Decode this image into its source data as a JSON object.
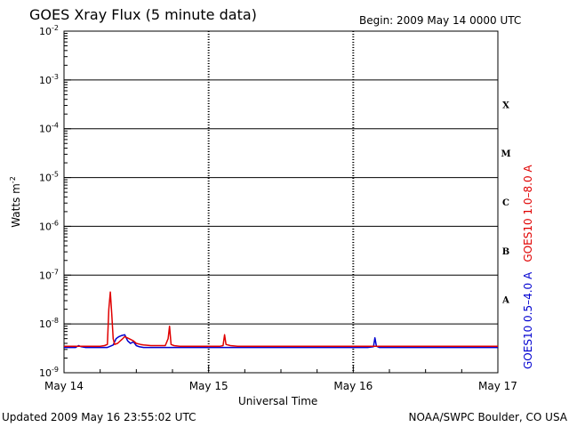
{
  "header": {
    "title": "GOES Xray Flux (5 minute data)",
    "begin": "Begin:  2009 May 14 0000 UTC"
  },
  "footer": {
    "updated": "Updated 2009 May 16 23:55:02 UTC",
    "credit": "NOAA/SWPC Boulder, CO USA"
  },
  "chart_data": {
    "type": "line",
    "title": "GOES Xray Flux (5 minute data)",
    "xlabel": "Universal Time",
    "ylabel": "Watts m",
    "ylabel_sup": "-2",
    "x_unit": "days since 2009 May 14 0000 UTC",
    "xlim": [
      0,
      3
    ],
    "ylim": [
      1e-09,
      0.01
    ],
    "yscale": "log",
    "grid": "horizontal lines at decades from 1e-8 to 1e-3; dashed vertical lines at day boundaries",
    "x_ticks": [
      {
        "value": 0,
        "label": "May 14"
      },
      {
        "value": 1,
        "label": "May 15"
      },
      {
        "value": 2,
        "label": "May 16"
      },
      {
        "value": 3,
        "label": "May 17"
      }
    ],
    "y_ticks": [
      {
        "exp": -9,
        "base": "10",
        "sup": "-9"
      },
      {
        "exp": -8,
        "base": "10",
        "sup": "-8"
      },
      {
        "exp": -7,
        "base": "10",
        "sup": "-7"
      },
      {
        "exp": -6,
        "base": "10",
        "sup": "-6"
      },
      {
        "exp": -5,
        "base": "10",
        "sup": "-5"
      },
      {
        "exp": -4,
        "base": "10",
        "sup": "-4"
      },
      {
        "exp": -3,
        "base": "10",
        "sup": "-3"
      },
      {
        "exp": -2,
        "base": "10",
        "sup": "-2"
      }
    ],
    "flare_classes": [
      {
        "label": "A",
        "exp": -8
      },
      {
        "label": "B",
        "exp": -7
      },
      {
        "label": "C",
        "exp": -6
      },
      {
        "label": "M",
        "exp": -5
      },
      {
        "label": "X",
        "exp": -4
      }
    ],
    "series": [
      {
        "name": "GOES10 1.0–8.0 A",
        "color": "#e00000",
        "x": [
          0,
          0.05,
          0.1,
          0.15,
          0.2,
          0.25,
          0.28,
          0.3,
          0.31,
          0.32,
          0.33,
          0.34,
          0.35,
          0.37,
          0.4,
          0.42,
          0.45,
          0.48,
          0.5,
          0.53,
          0.55,
          0.6,
          0.65,
          0.7,
          0.72,
          0.73,
          0.74,
          0.76,
          0.8,
          0.9,
          1.0,
          1.05,
          1.08,
          1.1,
          1.11,
          1.12,
          1.15,
          1.2,
          1.4,
          1.6,
          1.8,
          2.0,
          2.1,
          2.2,
          2.3,
          2.5,
          2.7,
          2.9,
          3.0
        ],
        "y": [
          3.5e-09,
          3.5e-09,
          3.5e-09,
          3.5e-09,
          3.5e-09,
          3.5e-09,
          3.6e-09,
          3.8e-09,
          2e-08,
          4.5e-08,
          1.6e-08,
          5e-09,
          3.8e-09,
          4e-09,
          4.8e-09,
          5.5e-09,
          5e-09,
          4.5e-09,
          4e-09,
          3.8e-09,
          3.7e-09,
          3.6e-09,
          3.6e-09,
          3.6e-09,
          5e-09,
          9e-09,
          3.8e-09,
          3.6e-09,
          3.5e-09,
          3.5e-09,
          3.5e-09,
          3.5e-09,
          3.5e-09,
          3.6e-09,
          6e-09,
          3.8e-09,
          3.6e-09,
          3.5e-09,
          3.5e-09,
          3.5e-09,
          3.5e-09,
          3.5e-09,
          3.5e-09,
          3.5e-09,
          3.5e-09,
          3.5e-09,
          3.5e-09,
          3.5e-09,
          3.5e-09
        ]
      },
      {
        "name": "GOES10 0.5–4.0 A",
        "color": "#0000d0",
        "x": [
          0,
          0.05,
          0.08,
          0.1,
          0.12,
          0.15,
          0.2,
          0.25,
          0.28,
          0.3,
          0.32,
          0.34,
          0.36,
          0.38,
          0.4,
          0.42,
          0.44,
          0.46,
          0.48,
          0.5,
          0.52,
          0.55,
          0.6,
          0.7,
          0.8,
          1.0,
          1.2,
          1.4,
          1.6,
          1.8,
          2.0,
          2.1,
          2.14,
          2.15,
          2.16,
          2.18,
          2.2,
          2.4,
          2.6,
          2.8,
          3.0
        ],
        "y": [
          3.3e-09,
          3.3e-09,
          3.3e-09,
          3.6e-09,
          3.4e-09,
          3.3e-09,
          3.3e-09,
          3.3e-09,
          3.3e-09,
          3.3e-09,
          3.5e-09,
          3.7e-09,
          5e-09,
          5.5e-09,
          5.8e-09,
          6e-09,
          4.5e-09,
          4e-09,
          4.3e-09,
          3.6e-09,
          3.4e-09,
          3.3e-09,
          3.3e-09,
          3.3e-09,
          3.3e-09,
          3.3e-09,
          3.3e-09,
          3.3e-09,
          3.3e-09,
          3.3e-09,
          3.3e-09,
          3.3e-09,
          3.4e-09,
          5.2e-09,
          3.5e-09,
          3.3e-09,
          3.3e-09,
          3.3e-09,
          3.3e-09,
          3.3e-09,
          3.3e-09
        ]
      }
    ]
  }
}
